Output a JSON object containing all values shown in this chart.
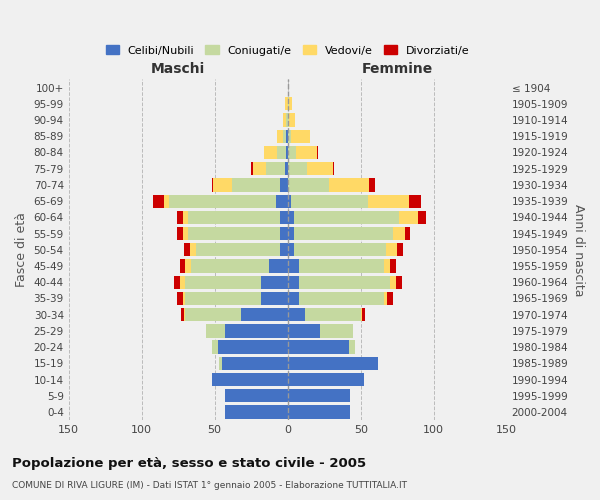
{
  "age_groups": [
    "0-4",
    "5-9",
    "10-14",
    "15-19",
    "20-24",
    "25-29",
    "30-34",
    "35-39",
    "40-44",
    "45-49",
    "50-54",
    "55-59",
    "60-64",
    "65-69",
    "70-74",
    "75-79",
    "80-84",
    "85-89",
    "90-94",
    "95-99",
    "100+"
  ],
  "birth_years": [
    "2000-2004",
    "1995-1999",
    "1990-1994",
    "1985-1989",
    "1980-1984",
    "1975-1979",
    "1970-1974",
    "1965-1969",
    "1960-1964",
    "1955-1959",
    "1950-1954",
    "1945-1949",
    "1940-1944",
    "1935-1939",
    "1930-1934",
    "1925-1929",
    "1920-1924",
    "1915-1919",
    "1910-1914",
    "1905-1909",
    "≤ 1904"
  ],
  "maschi": {
    "celibi": [
      43,
      43,
      52,
      45,
      48,
      43,
      32,
      18,
      18,
      13,
      5,
      5,
      5,
      8,
      5,
      2,
      1,
      1,
      0,
      0,
      0
    ],
    "coniugati": [
      0,
      0,
      0,
      2,
      4,
      13,
      38,
      52,
      52,
      53,
      58,
      63,
      63,
      73,
      33,
      13,
      6,
      2,
      1,
      0,
      0
    ],
    "vedovi": [
      0,
      0,
      0,
      0,
      0,
      0,
      1,
      2,
      4,
      4,
      4,
      4,
      4,
      4,
      13,
      9,
      9,
      4,
      2,
      2,
      0
    ],
    "divorziati": [
      0,
      0,
      0,
      0,
      0,
      0,
      2,
      4,
      4,
      4,
      4,
      4,
      4,
      7,
      1,
      1,
      0,
      0,
      0,
      0,
      0
    ]
  },
  "femmine": {
    "nubili": [
      43,
      43,
      52,
      62,
      42,
      22,
      12,
      8,
      8,
      8,
      4,
      4,
      4,
      2,
      0,
      0,
      0,
      0,
      0,
      0,
      0
    ],
    "coniugate": [
      0,
      0,
      0,
      0,
      4,
      23,
      38,
      58,
      62,
      58,
      63,
      68,
      72,
      53,
      28,
      13,
      6,
      2,
      1,
      1,
      0
    ],
    "vedove": [
      0,
      0,
      0,
      0,
      0,
      0,
      1,
      2,
      4,
      4,
      8,
      8,
      13,
      28,
      28,
      18,
      14,
      13,
      4,
      2,
      0
    ],
    "divorziate": [
      0,
      0,
      0,
      0,
      0,
      0,
      2,
      4,
      4,
      4,
      4,
      4,
      6,
      8,
      4,
      1,
      1,
      0,
      0,
      0,
      0
    ]
  },
  "colors": {
    "celibi": "#4472c4",
    "coniugati": "#c5d9a0",
    "vedovi": "#ffd966",
    "divorziati": "#cc0000"
  },
  "title": "Popolazione per età, sesso e stato civile - 2005",
  "subtitle": "COMUNE DI RIVA LIGURE (IM) - Dati ISTAT 1° gennaio 2005 - Elaborazione TUTTITALIA.IT",
  "xlabel_left": "Maschi",
  "xlabel_right": "Femmine",
  "ylabel_left": "Fasce di età",
  "ylabel_right": "Anni di nascita",
  "xlim": 150,
  "legend_labels": [
    "Celibi/Nubili",
    "Coniugati/e",
    "Vedovi/e",
    "Divorziati/e"
  ]
}
